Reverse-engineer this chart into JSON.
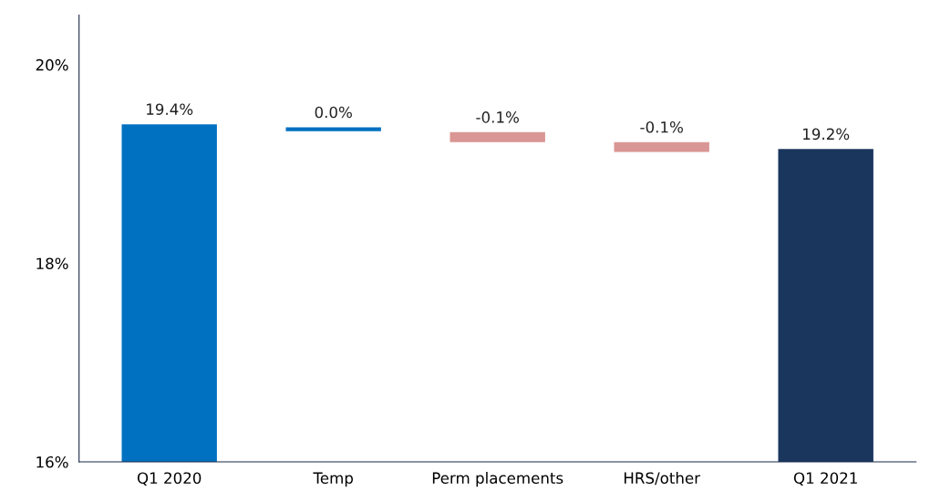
{
  "chart_data": {
    "type": "bar",
    "categories": [
      "Q1 2020",
      "Temp",
      "Perm placements",
      "HRS/other",
      "Q1 2021"
    ],
    "values": [
      19.4,
      0.04,
      -0.1,
      -0.1,
      19.15
    ],
    "base": [
      null,
      19.33,
      19.32,
      19.22,
      null
    ],
    "colors": [
      "#0070c0",
      "#0070c0",
      "#d99694",
      "#d99694",
      "#1b365d"
    ],
    "value_labels": [
      "19.4%",
      "0.0%",
      "-0.1%",
      "-0.1%",
      "19.2%"
    ],
    "ylim": [
      16,
      20.5
    ],
    "yticks": [
      {
        "value": 16,
        "label": "16%"
      },
      {
        "value": 18,
        "label": "18%"
      },
      {
        "value": 20,
        "label": "20%"
      }
    ],
    "grid": false
  }
}
